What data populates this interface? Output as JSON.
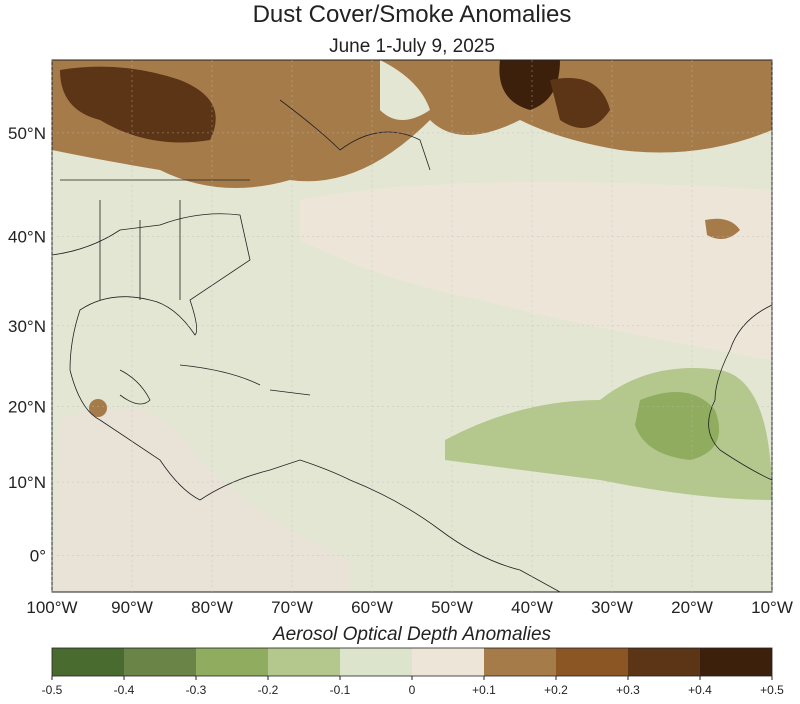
{
  "map": {
    "title": "Dust Cover/Smoke Anomalies",
    "subtitle": "June 1-July 9, 2025",
    "lon_range": [
      -100,
      -10
    ],
    "lat_range": [
      -5,
      56
    ],
    "lon_ticks": [
      {
        "value": -100,
        "label": "100°W"
      },
      {
        "value": -90,
        "label": "90°W"
      },
      {
        "value": -80,
        "label": "80°W"
      },
      {
        "value": -70,
        "label": "70°W"
      },
      {
        "value": -60,
        "label": "60°W"
      },
      {
        "value": -50,
        "label": "50°W"
      },
      {
        "value": -40,
        "label": "40°W"
      },
      {
        "value": -30,
        "label": "30°W"
      },
      {
        "value": -20,
        "label": "20°W"
      },
      {
        "value": -10,
        "label": "10°W"
      }
    ],
    "lat_ticks": [
      {
        "value": 0,
        "label": "0°"
      },
      {
        "value": 10,
        "label": "10°N"
      },
      {
        "value": 20,
        "label": "20°N"
      },
      {
        "value": 30,
        "label": "30°N"
      },
      {
        "value": 40,
        "label": "40°N"
      },
      {
        "value": 50,
        "label": "50°N"
      }
    ],
    "colorbar": {
      "label": "Aerosol Optical Depth Anomalies",
      "ticks": [
        -0.5,
        -0.4,
        -0.3,
        -0.2,
        -0.1,
        0,
        {
          "value": 0.1,
          "label": "+0.1"
        },
        {
          "value": 0.2,
          "label": "+0.2"
        },
        {
          "value": 0.3,
          "label": "+0.3"
        },
        {
          "value": 0.4,
          "label": "+0.4"
        },
        {
          "value": 0.5,
          "label": "+0.5"
        }
      ],
      "colors": [
        "#4a6b30",
        "#6a8447",
        "#8fac5f",
        "#b4c88e",
        "#dde4cc",
        "#ede6d8",
        "#a67b4a",
        "#8c5524",
        "#5c3416",
        "#3c200c"
      ]
    }
  }
}
